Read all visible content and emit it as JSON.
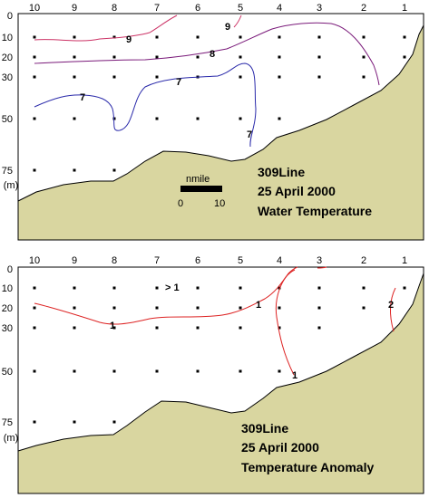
{
  "chart_data": [
    {
      "type": "contour",
      "title": "309Line",
      "subtitle_lines": [
        "25 April 2000",
        "Water Temperature"
      ],
      "stations": [
        "10",
        "9",
        "8",
        "7",
        "6",
        "5",
        "4",
        "3",
        "2",
        "1"
      ],
      "depth_ticks": [
        "0",
        "10",
        "20",
        "30",
        "50",
        "75"
      ],
      "depth_unit": "(m)",
      "scale_bar": {
        "label": "nmile",
        "min": "0",
        "max": "10"
      },
      "bottom_color": "#d9d6a0",
      "contours": [
        {
          "level": "9",
          "color": "#cc3366",
          "labels": [
            "9",
            "9"
          ]
        },
        {
          "level": "8",
          "color": "#7a1a7a",
          "labels": [
            "8"
          ]
        },
        {
          "level": "7",
          "color": "#2a2aaa",
          "labels": [
            "7",
            "7",
            "7"
          ]
        }
      ]
    },
    {
      "type": "contour",
      "title": "309Line",
      "subtitle_lines": [
        "25 April 2000",
        "Temperature Anomaly"
      ],
      "stations": [
        "10",
        "9",
        "8",
        "7",
        "6",
        "5",
        "4",
        "3",
        "2",
        "1"
      ],
      "depth_ticks": [
        "0",
        "10",
        "20",
        "30",
        "50",
        "75"
      ],
      "depth_unit": "(m)",
      "annotation": "> 1",
      "bottom_color": "#d9d6a0",
      "contours": [
        {
          "level": "1",
          "color": "#dd2222",
          "labels": [
            "1",
            "1",
            "1"
          ]
        },
        {
          "level": "2",
          "color": "#dd2222",
          "labels": [
            "2"
          ]
        }
      ]
    }
  ]
}
